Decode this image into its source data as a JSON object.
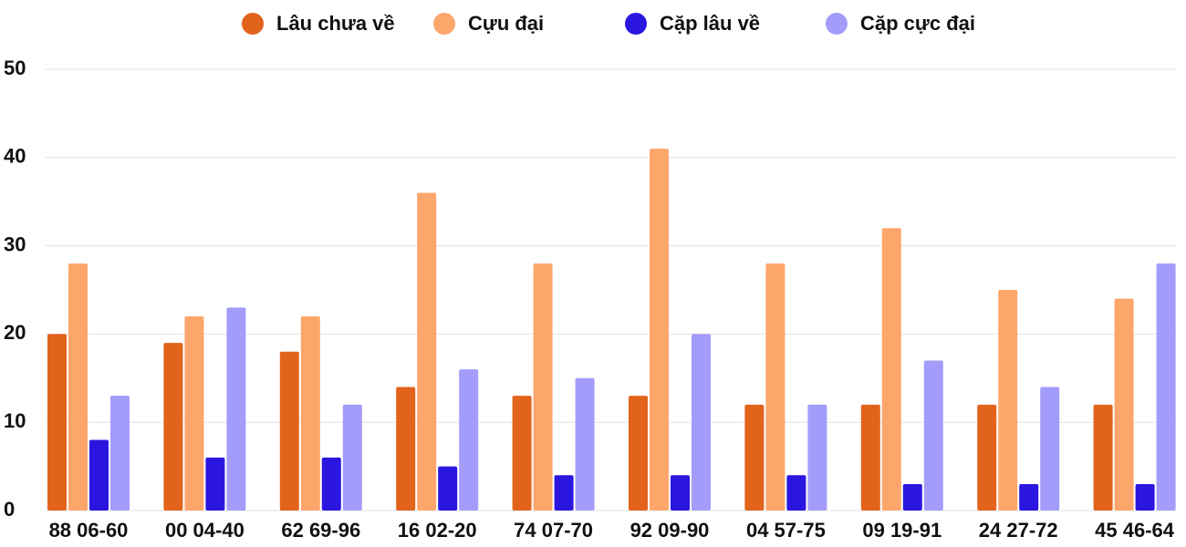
{
  "chart_data": {
    "type": "bar",
    "categories": [
      "88 06-60",
      "00 04-40",
      "62 69-96",
      "16 02-20",
      "74 07-70",
      "92 09-90",
      "04 57-75",
      "09 19-91",
      "24 27-72",
      "45 46-64"
    ],
    "series": [
      {
        "name": "Lâu chưa về",
        "color": "#e2631c",
        "values": [
          20,
          19,
          18,
          14,
          13,
          13,
          12,
          12,
          12,
          12
        ]
      },
      {
        "name": "Cựu đại",
        "color": "#fda66c",
        "values": [
          28,
          22,
          22,
          36,
          28,
          41,
          28,
          32,
          25,
          24
        ]
      },
      {
        "name": "Cặp lâu về",
        "color": "#2b16e0",
        "values": [
          8,
          6,
          6,
          5,
          4,
          4,
          4,
          3,
          3,
          3
        ]
      },
      {
        "name": "Cặp cực đại",
        "color": "#a39cfb",
        "values": [
          13,
          23,
          12,
          16,
          15,
          20,
          12,
          17,
          14,
          28
        ]
      }
    ],
    "ylim": [
      0,
      50
    ],
    "yticks": [
      0,
      10,
      20,
      30,
      40,
      50
    ],
    "grid": true,
    "legend": "top"
  }
}
